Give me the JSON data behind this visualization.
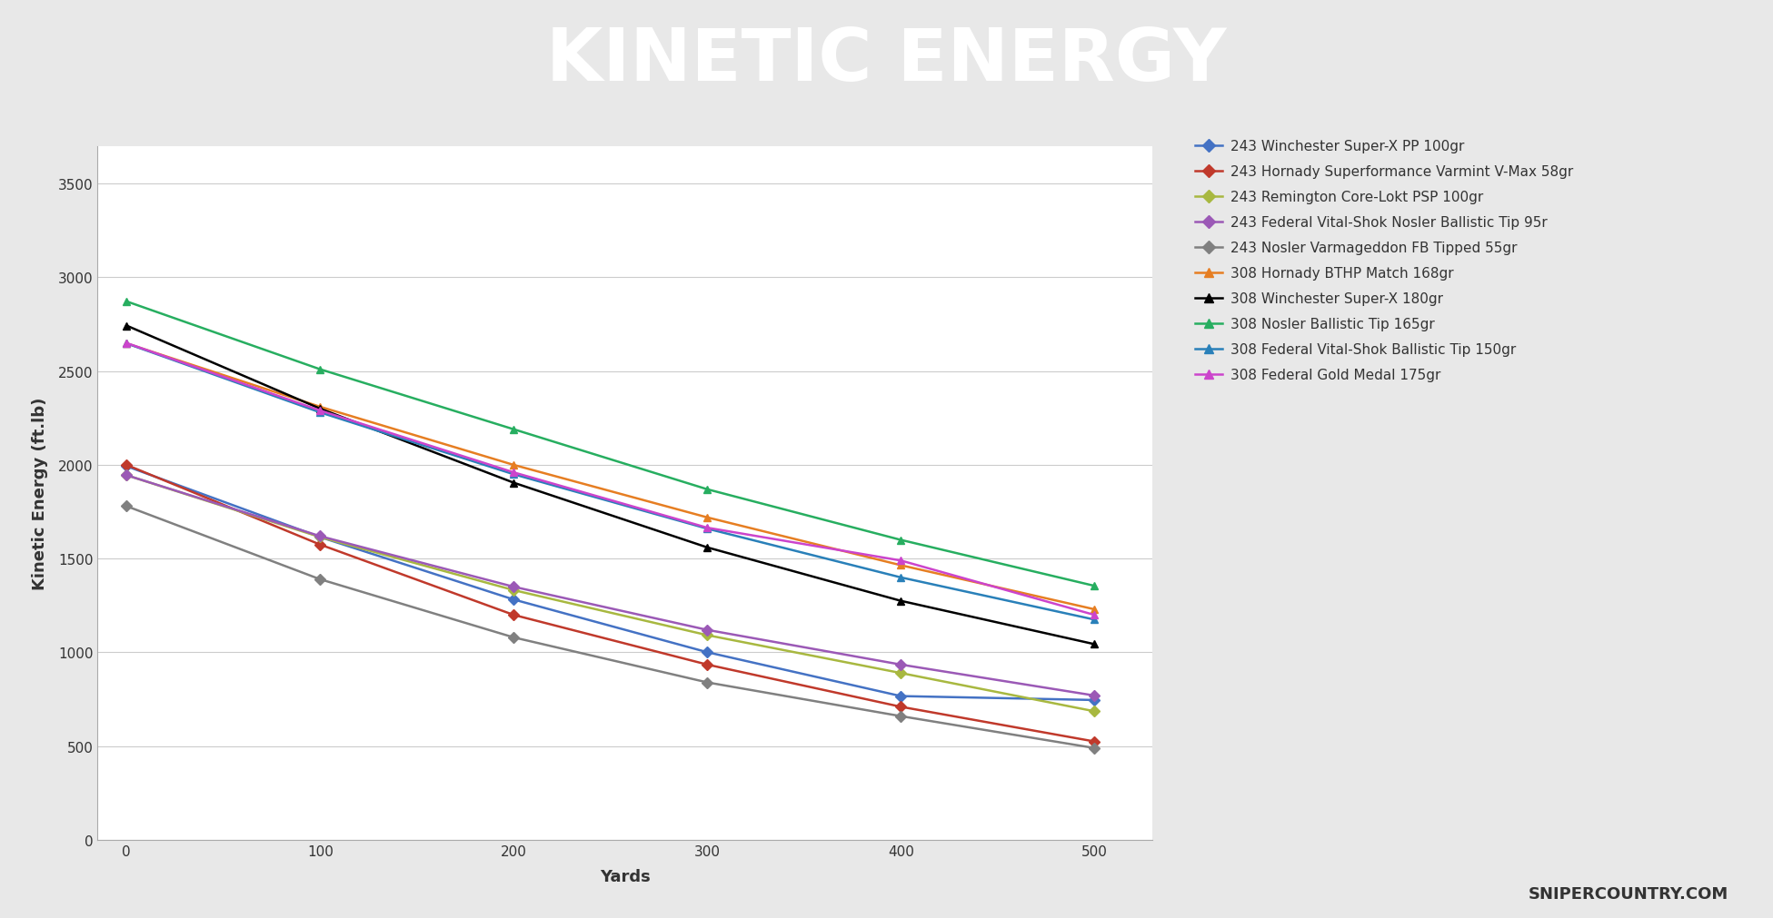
{
  "title": "KINETIC ENERGY",
  "xlabel": "Yards",
  "ylabel": "Kinetic Energy (ft.lb)",
  "watermark": "SNIPERCOUNTRY.COM",
  "title_bg": "#696969",
  "accent_bar": "#e8706a",
  "chart_bg": "#ffffff",
  "outer_bg": "#e8e8e8",
  "x_values": [
    0,
    100,
    200,
    300,
    400,
    500
  ],
  "series": [
    {
      "label": "243 Winchester Super-X PP 100gr",
      "color": "#4472c4",
      "marker": "D",
      "values": [
        1993,
        1615,
        1282,
        1001,
        767,
        746
      ]
    },
    {
      "label": "243 Hornady Superformance Varmint V-Max 58gr",
      "color": "#c0392b",
      "marker": "D",
      "values": [
        2000,
        1575,
        1200,
        935,
        710,
        525
      ]
    },
    {
      "label": "243 Remington Core-Lokt PSP 100gr",
      "color": "#a8b840",
      "marker": "D",
      "values": [
        1945,
        1615,
        1332,
        1092,
        890,
        686
      ]
    },
    {
      "label": "243 Federal Vital-Shok Nosler Ballistic Tip 95r",
      "color": "#9b59b6",
      "marker": "D",
      "values": [
        1945,
        1620,
        1350,
        1120,
        935,
        770
      ]
    },
    {
      "label": "243 Nosler Varmageddon FB Tipped 55gr",
      "color": "#808080",
      "marker": "D",
      "values": [
        1780,
        1390,
        1080,
        840,
        660,
        490
      ]
    },
    {
      "label": "308 Hornady BTHP Match 168gr",
      "color": "#e67e22",
      "marker": "^",
      "values": [
        2648,
        2310,
        2000,
        1720,
        1465,
        1230
      ]
    },
    {
      "label": "308 Winchester Super-X 180gr",
      "color": "#000000",
      "marker": "^",
      "values": [
        2743,
        2300,
        1905,
        1560,
        1275,
        1044
      ]
    },
    {
      "label": "308 Nosler Ballistic Tip 165gr",
      "color": "#27ae60",
      "marker": "^",
      "values": [
        2872,
        2510,
        2190,
        1870,
        1600,
        1355
      ]
    },
    {
      "label": "308 Federal Vital-Shok Ballistic Tip 150gr",
      "color": "#2980b9",
      "marker": "^",
      "values": [
        2648,
        2280,
        1950,
        1660,
        1400,
        1175
      ]
    },
    {
      "label": "308 Federal Gold Medal 175gr",
      "color": "#cc44cc",
      "marker": "^",
      "values": [
        2650,
        2290,
        1960,
        1665,
        1490,
        1200
      ]
    }
  ]
}
